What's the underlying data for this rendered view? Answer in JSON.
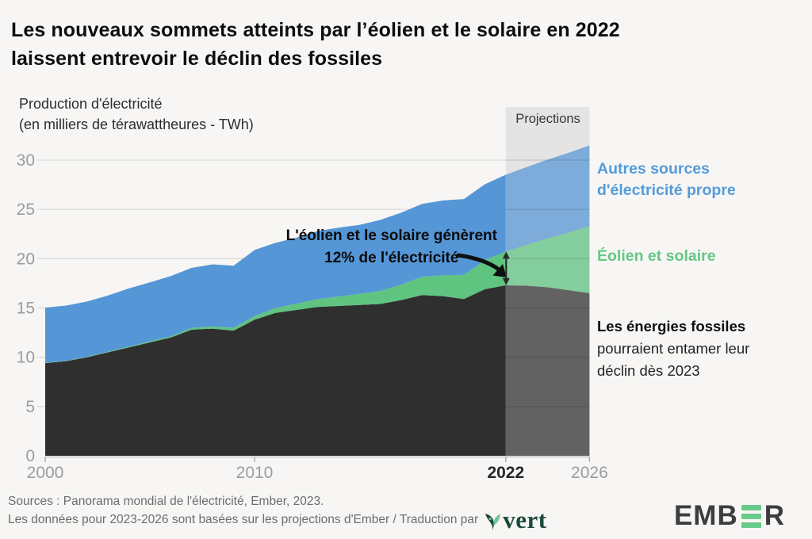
{
  "header": {
    "title_line1": "Les nouveaux sommets atteints par l’éolien et le solaire en 2022",
    "title_line2": "laissent entrevoir le déclin des fossiles"
  },
  "axis_title": {
    "line1": "Production d'électricité",
    "line2": "(en milliers de térawattheures - TWh)"
  },
  "projection_label": "Projections",
  "annotation": {
    "line1": "L'éolien et le solaire génèrent",
    "line2": "12% de l'électricité"
  },
  "legend": {
    "clean": {
      "line1": "Autres sources",
      "line2": "d'électricité propre",
      "color": "#549bda"
    },
    "wind_solar": {
      "label": "Éolien et solaire",
      "color": "#66c885"
    },
    "fossil": {
      "bold": "Les énergies fossiles",
      "line2": "pourraient entamer leur",
      "line3": "déclin dès 2023"
    }
  },
  "footer": {
    "line1": "Sources : Panorama mondial de l'électricité, Ember, 2023.",
    "line2": "Les données pour 2023-2026 sont basées sur les projections d'Ember / Traduction par",
    "vert_logo_text": "vert",
    "ember_logo": {
      "part1": "EMB",
      "part2": "R"
    }
  },
  "chart_data": {
    "type": "area",
    "stacked": true,
    "title": "Les nouveaux sommets atteints par l’éolien et le solaire en 2022 laissent entrevoir le déclin des fossiles",
    "ylabel": "Production d'électricité (en milliers de térawattheures - TWh)",
    "xlabel": "",
    "x": [
      2000,
      2001,
      2002,
      2003,
      2004,
      2005,
      2006,
      2007,
      2008,
      2009,
      2010,
      2011,
      2012,
      2013,
      2014,
      2015,
      2016,
      2017,
      2018,
      2019,
      2020,
      2021,
      2022,
      2023,
      2024,
      2025,
      2026
    ],
    "series": [
      {
        "name": "Énergies fossiles",
        "color": "#2f2f2f",
        "values": [
          9.4,
          9.6,
          10.0,
          10.5,
          11.0,
          11.5,
          12.0,
          12.8,
          12.9,
          12.7,
          13.8,
          14.5,
          14.8,
          15.1,
          15.2,
          15.3,
          15.4,
          15.8,
          16.3,
          16.2,
          15.9,
          16.9,
          17.3,
          17.25,
          17.1,
          16.8,
          16.5
        ]
      },
      {
        "name": "Éolien et solaire",
        "color": "#5ec47f",
        "values": [
          0.03,
          0.04,
          0.05,
          0.06,
          0.08,
          0.1,
          0.13,
          0.17,
          0.22,
          0.29,
          0.38,
          0.5,
          0.63,
          0.79,
          0.95,
          1.12,
          1.33,
          1.56,
          1.85,
          2.11,
          2.45,
          2.95,
          3.42,
          4.15,
          4.95,
          5.85,
          6.8
        ]
      },
      {
        "name": "Autres sources d'électricité propre",
        "color": "#5596d6",
        "values": [
          5.6,
          5.6,
          5.6,
          5.7,
          5.9,
          6.0,
          6.1,
          6.1,
          6.3,
          6.3,
          6.7,
          6.6,
          6.7,
          6.9,
          7.0,
          7.0,
          7.2,
          7.3,
          7.4,
          7.6,
          7.7,
          7.7,
          7.8,
          7.9,
          8.0,
          8.1,
          8.2
        ]
      }
    ],
    "yticks": [
      0,
      5,
      10,
      15,
      20,
      25,
      30
    ],
    "ylim": [
      0,
      32
    ],
    "xticks": [
      {
        "label": "2000",
        "year": 2000,
        "emphasis": false
      },
      {
        "label": "2010",
        "year": 2010,
        "emphasis": false
      },
      {
        "label": "2022",
        "year": 2022,
        "emphasis": true
      },
      {
        "label": "2026",
        "year": 2026,
        "emphasis": false
      }
    ],
    "projection_start": 2022,
    "projection_bg": "#e4e4e4",
    "grid": true,
    "legend_position": "right",
    "wind_solar_share_2022": "12%"
  }
}
